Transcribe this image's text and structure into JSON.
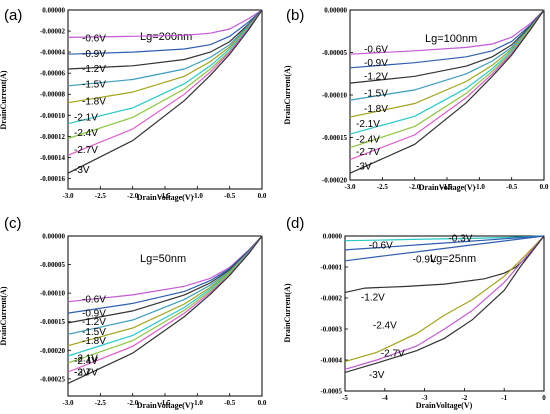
{
  "figure": {
    "panel_labels": [
      "(a)",
      "(b)",
      "(c)",
      "(d)"
    ]
  },
  "chart_data": [
    {
      "type": "line",
      "panel": "(a)",
      "annotation": "Lg=200nm",
      "xlabel": "DrainVoltage(V)",
      "ylabel": "DrainCurrent(A)",
      "xlim": [
        -3.0,
        0.0
      ],
      "ylim": [
        -0.00017,
        0.0
      ],
      "xticks": [
        -3.0,
        -2.5,
        -2.0,
        -1.5,
        -1.0,
        -0.5,
        0.0
      ],
      "xtick_labels": [
        "-3.0",
        "-2.5",
        "-2.0",
        "-1.5",
        "-1.0",
        "-0.5",
        "0.0"
      ],
      "yticks": [
        0,
        -2e-05,
        -4e-05,
        -6e-05,
        -8e-05,
        -0.0001,
        -0.00012,
        -0.00014,
        -0.00016
      ],
      "ytick_labels": [
        "0.00000",
        "-0.00002",
        "-0.00004",
        "-0.00006",
        "-0.00008",
        "-0.00010",
        "-0.00012",
        "-0.00014",
        "-0.00016"
      ],
      "series": [
        {
          "name": "-0.6V",
          "color": "#c45ad6",
          "x": [
            -3.0,
            -2.0,
            -1.2,
            -0.8,
            -0.5,
            -0.2,
            0.0
          ],
          "y": [
            -2.6e-05,
            -2.5e-05,
            -2.4e-05,
            -2.2e-05,
            -1.8e-05,
            -8e-06,
            0
          ]
        },
        {
          "name": "-0.9V",
          "color": "#2e5fb0",
          "x": [
            -3.0,
            -2.0,
            -1.2,
            -0.8,
            -0.5,
            -0.2,
            0.0
          ],
          "y": [
            -4.2e-05,
            -4e-05,
            -3.7e-05,
            -3.3e-05,
            -2.5e-05,
            -1.1e-05,
            0
          ]
        },
        {
          "name": "-1.2V",
          "color": "#333333",
          "x": [
            -3.0,
            -2.0,
            -1.2,
            -0.8,
            -0.5,
            -0.2,
            0.0
          ],
          "y": [
            -5.6e-05,
            -5.3e-05,
            -4.7e-05,
            -4e-05,
            -3e-05,
            -1.3e-05,
            0
          ]
        },
        {
          "name": "-1.5V",
          "color": "#3a9dc0",
          "x": [
            -3.0,
            -2.0,
            -1.2,
            -0.8,
            -0.5,
            -0.2,
            0.0
          ],
          "y": [
            -7.2e-05,
            -6.6e-05,
            -5.6e-05,
            -4.5e-05,
            -3.3e-05,
            -1.4e-05,
            0
          ]
        },
        {
          "name": "-1.8V",
          "color": "#a3a31a",
          "x": [
            -3.0,
            -2.0,
            -1.2,
            -0.8,
            -0.5,
            -0.2,
            0.0
          ],
          "y": [
            -8.8e-05,
            -7.8e-05,
            -6.3e-05,
            -4.9e-05,
            -3.5e-05,
            -1.5e-05,
            0
          ]
        },
        {
          "name": "-2.1V",
          "color": "#27c9c9",
          "x": [
            -3.0,
            -2.0,
            -1.2,
            -0.8,
            -0.5,
            -0.2,
            0.0
          ],
          "y": [
            -0.000108,
            -9.3e-05,
            -7e-05,
            -5.3e-05,
            -3.7e-05,
            -1.6e-05,
            0
          ]
        },
        {
          "name": "-2.4V",
          "color": "#8cc63f",
          "x": [
            -3.0,
            -2.0,
            -1.2,
            -0.8,
            -0.5,
            -0.2,
            0.0
          ],
          "y": [
            -0.000122,
            -0.000102,
            -7.5e-05,
            -5.6e-05,
            -3.9e-05,
            -1.7e-05,
            0
          ]
        },
        {
          "name": "-2.7V",
          "color": "#e05ad0",
          "x": [
            -3.0,
            -2.0,
            -1.2,
            -0.8,
            -0.5,
            -0.2,
            0.0
          ],
          "y": [
            -0.000138,
            -0.000113,
            -8e-05,
            -5.9e-05,
            -4e-05,
            -1.7e-05,
            0
          ]
        },
        {
          "name": "-3V",
          "color": "#333333",
          "x": [
            -3.0,
            -2.0,
            -1.2,
            -0.8,
            -0.5,
            -0.2,
            0.0
          ],
          "y": [
            -0.000155,
            -0.000124,
            -8.6e-05,
            -6.2e-05,
            -4.2e-05,
            -1.8e-05,
            0
          ]
        }
      ],
      "label_y": [
        -2.6e-05,
        -4.1e-05,
        -5.5e-05,
        -7e-05,
        -8.6e-05,
        -0.000101,
        -0.000116,
        -0.000132,
        -0.000151
      ]
    },
    {
      "type": "line",
      "panel": "(b)",
      "annotation": "Lg=100nm",
      "xlabel": "DrainVoltage(V)",
      "ylabel": "DrainCurrent(A)",
      "xlim": [
        -3.0,
        0.0
      ],
      "ylim": [
        -0.0002,
        0.0
      ],
      "xticks": [
        -3.0,
        -2.5,
        -2.0,
        -1.5,
        -1.0,
        -0.5,
        0.0
      ],
      "xtick_labels": [
        "-3.0",
        "-2.5",
        "-2.0",
        "-1.5",
        "-1.0",
        "-0.5",
        "0.0"
      ],
      "yticks": [
        0,
        -5e-05,
        -0.0001,
        -0.00015,
        -0.0002
      ],
      "ytick_labels": [
        "0.00000",
        "-0.00005",
        "-0.00010",
        "-0.00015",
        "-0.00020"
      ],
      "series": [
        {
          "name": "-0.6V",
          "color": "#c45ad6",
          "x": [
            -3.0,
            -2.0,
            -1.2,
            -0.8,
            -0.5,
            -0.2,
            0.0
          ],
          "y": [
            -5.2e-05,
            -4.8e-05,
            -4.4e-05,
            -4e-05,
            -3.2e-05,
            -1.5e-05,
            0
          ]
        },
        {
          "name": "-0.9V",
          "color": "#2e5fb0",
          "x": [
            -3.0,
            -2.0,
            -1.2,
            -0.8,
            -0.5,
            -0.2,
            0.0
          ],
          "y": [
            -6.8e-05,
            -6.2e-05,
            -5.5e-05,
            -4.8e-05,
            -3.7e-05,
            -1.7e-05,
            0
          ]
        },
        {
          "name": "-1.2V",
          "color": "#333333",
          "x": [
            -3.0,
            -2.0,
            -1.2,
            -0.8,
            -0.5,
            -0.2,
            0.0
          ],
          "y": [
            -8.6e-05,
            -7.8e-05,
            -6.6e-05,
            -5.5e-05,
            -4.1e-05,
            -1.8e-05,
            0
          ]
        },
        {
          "name": "-1.5V",
          "color": "#3a9dc0",
          "x": [
            -3.0,
            -2.0,
            -1.2,
            -0.8,
            -0.5,
            -0.2,
            0.0
          ],
          "y": [
            -0.000106,
            -9.4e-05,
            -7.5e-05,
            -6e-05,
            -4.4e-05,
            -1.9e-05,
            0
          ]
        },
        {
          "name": "-1.8V",
          "color": "#a3a31a",
          "x": [
            -3.0,
            -2.0,
            -1.2,
            -0.8,
            -0.5,
            -0.2,
            0.0
          ],
          "y": [
            -0.000126,
            -0.00011,
            -8.4e-05,
            -6.5e-05,
            -4.6e-05,
            -2e-05,
            0
          ]
        },
        {
          "name": "-2.1V",
          "color": "#27c9c9",
          "x": [
            -3.0,
            -2.0,
            -1.2,
            -0.8,
            -0.5,
            -0.2,
            0.0
          ],
          "y": [
            -0.000146,
            -0.000125,
            -9.2e-05,
            -6.9e-05,
            -4.8e-05,
            -2.1e-05,
            0
          ]
        },
        {
          "name": "-2.4V",
          "color": "#8cc63f",
          "x": [
            -3.0,
            -2.0,
            -1.2,
            -0.8,
            -0.5,
            -0.2,
            0.0
          ],
          "y": [
            -0.000162,
            -0.000137,
            -9.8e-05,
            -7.2e-05,
            -5e-05,
            -2.1e-05,
            0
          ]
        },
        {
          "name": "-2.7V",
          "color": "#e05ad0",
          "x": [
            -3.0,
            -2.0,
            -1.2,
            -0.8,
            -0.5,
            -0.2,
            0.0
          ],
          "y": [
            -0.000176,
            -0.000147,
            -0.000103,
            -7.5e-05,
            -5.1e-05,
            -2.2e-05,
            0
          ]
        },
        {
          "name": "-3V",
          "color": "#333333",
          "x": [
            -3.0,
            -2.0,
            -1.2,
            -0.8,
            -0.5,
            -0.2,
            0.0
          ],
          "y": [
            -0.000192,
            -0.000158,
            -0.000109,
            -7.8e-05,
            -5.3e-05,
            -2.2e-05,
            0
          ]
        }
      ],
      "label_y": [
        -4.5e-05,
        -6.1e-05,
        -7.7e-05,
        -9.7e-05,
        -0.000115,
        -0.000133,
        -0.000151,
        -0.000166,
        -0.000183
      ]
    },
    {
      "type": "line",
      "panel": "(c)",
      "annotation": "Lg=50nm",
      "xlabel": "DrainVoltage(V)",
      "ylabel": "DrainCurrent(A)",
      "xlim": [
        -3.0,
        0.0
      ],
      "ylim": [
        -0.00028,
        0.0
      ],
      "xticks": [
        -3.0,
        -2.5,
        -2.0,
        -1.5,
        -1.0,
        -0.5,
        0.0
      ],
      "xtick_labels": [
        "-3.0",
        "-2.5",
        "-2.0",
        "-1.5",
        "-1.0",
        "-0.5",
        "0.0"
      ],
      "yticks": [
        0,
        -5e-05,
        -0.0001,
        -0.00015,
        -0.0002,
        -0.00025
      ],
      "ytick_labels": [
        "0.00000",
        "-0.00005",
        "-0.00010",
        "-0.00015",
        "-0.00020",
        "-0.00025"
      ],
      "series": [
        {
          "name": "-0.6V",
          "color": "#c45ad6",
          "x": [
            -3.0,
            -2.0,
            -1.2,
            -0.8,
            -0.5,
            -0.2,
            0.0
          ],
          "y": [
            -0.000115,
            -0.000103,
            -8.8e-05,
            -7.4e-05,
            -5.5e-05,
            -2.4e-05,
            0
          ]
        },
        {
          "name": "-0.9V",
          "color": "#2e5fb0",
          "x": [
            -3.0,
            -2.0,
            -1.2,
            -0.8,
            -0.5,
            -0.2,
            0.0
          ],
          "y": [
            -0.000135,
            -0.000118,
            -9.7e-05,
            -7.8e-05,
            -5.7e-05,
            -2.5e-05,
            0
          ]
        },
        {
          "name": "-1.2V",
          "color": "#333333",
          "x": [
            -3.0,
            -2.0,
            -1.2,
            -0.8,
            -0.5,
            -0.2,
            0.0
          ],
          "y": [
            -0.000152,
            -0.000131,
            -0.000103,
            -8.2e-05,
            -5.9e-05,
            -2.6e-05,
            0
          ]
        },
        {
          "name": "-1.5V",
          "color": "#3a9dc0",
          "x": [
            -3.0,
            -2.0,
            -1.2,
            -0.8,
            -0.5,
            -0.2,
            0.0
          ],
          "y": [
            -0.000172,
            -0.000147,
            -0.000111,
            -8.6e-05,
            -6.1e-05,
            -2.7e-05,
            0
          ]
        },
        {
          "name": "-1.8V",
          "color": "#a3a31a",
          "x": [
            -3.0,
            -2.0,
            -1.2,
            -0.8,
            -0.5,
            -0.2,
            0.0
          ],
          "y": [
            -0.000192,
            -0.000161,
            -0.000119,
            -9e-05,
            -6.3e-05,
            -2.8e-05,
            0
          ]
        },
        {
          "name": "-2.1V",
          "color": "#27c9c9",
          "x": [
            -3.0,
            -2.0,
            -1.2,
            -0.8,
            -0.5,
            -0.2,
            0.0
          ],
          "y": [
            -0.00021,
            -0.000174,
            -0.000125,
            -9.3e-05,
            -6.5e-05,
            -2.8e-05,
            0
          ]
        },
        {
          "name": "-2.4V",
          "color": "#8cc63f",
          "x": [
            -3.0,
            -2.0,
            -1.2,
            -0.8,
            -0.5,
            -0.2,
            0.0
          ],
          "y": [
            -0.000222,
            -0.000183,
            -0.00013,
            -9.6e-05,
            -6.6e-05,
            -2.9e-05,
            0
          ]
        },
        {
          "name": "-2.7V",
          "color": "#e05ad0",
          "x": [
            -3.0,
            -2.0,
            -1.2,
            -0.8,
            -0.5,
            -0.2,
            0.0
          ],
          "y": [
            -0.000238,
            -0.000193,
            -0.000135,
            -9.9e-05,
            -6.8e-05,
            -2.9e-05,
            0
          ]
        },
        {
          "name": "-3V",
          "color": "#333333",
          "x": [
            -3.0,
            -2.0,
            -1.2,
            -0.8,
            -0.5,
            -0.2,
            0.0
          ],
          "y": [
            -0.000258,
            -0.000205,
            -0.000141,
            -0.000102,
            -6.9e-05,
            -3e-05,
            0
          ]
        }
      ],
      "label_y": [
        -0.000109,
        -0.000134,
        -0.000149,
        -0.000166,
        -0.000182,
        -0.000213,
        -0.000217,
        -0.000237,
        -0.000237
      ]
    },
    {
      "type": "line",
      "panel": "(d)",
      "annotation": "Lg=25nm",
      "xlabel": "DrainVoltage(V)",
      "ylabel": "DrainCurrent(A)",
      "xlim": [
        -5,
        0
      ],
      "ylim": [
        -0.0005,
        0.0
      ],
      "xticks": [
        -5,
        -4,
        -3,
        -2,
        -1,
        0
      ],
      "xtick_labels": [
        "-5",
        "-4",
        "-3",
        "-2",
        "-1",
        "0"
      ],
      "yticks": [
        0,
        -0.0001,
        -0.0002,
        -0.0003,
        -0.0004,
        -0.0005
      ],
      "ytick_labels": [
        "0.0000",
        "-0.0001",
        "-0.0002",
        "-0.0003",
        "-0.0004",
        "-0.0005"
      ],
      "series": [
        {
          "name": "-0.3V",
          "color": "#27c9c9",
          "x": [
            -5,
            -4,
            -3,
            -2,
            -1,
            0
          ],
          "y": [
            -1.5e-05,
            -1.3e-05,
            -1e-05,
            -8e-06,
            -5e-06,
            0
          ]
        },
        {
          "name": "-0.6V",
          "color": "#2e5fb0",
          "x": [
            -5,
            -4,
            -3,
            -2,
            -1,
            0
          ],
          "y": [
            -4.5e-05,
            -3.6e-05,
            -2.7e-05,
            -1.8e-05,
            -9e-06,
            0
          ]
        },
        {
          "name": "-0.9V",
          "color": "#2e5fb0",
          "x": [
            -5,
            -4,
            -3,
            -2,
            -1,
            0
          ],
          "y": [
            -8e-05,
            -6.4e-05,
            -4.8e-05,
            -3.2e-05,
            -1.6e-05,
            0
          ]
        },
        {
          "name": "-1.2V",
          "color": "#333333",
          "x": [
            -5,
            -4.5,
            -3.5,
            -2.5,
            -1.5,
            -1.0,
            -0.7,
            -0.4,
            0
          ],
          "y": [
            -0.000182,
            -0.000168,
            -0.000163,
            -0.000155,
            -0.000138,
            -0.00012,
            -0.0001,
            -6.5e-05,
            0
          ]
        },
        {
          "name": "-2.4V",
          "color": "#a3a31a",
          "x": [
            -5,
            -4.2,
            -3.2,
            -2.5,
            -1.8,
            -1.0,
            -0.6,
            0
          ],
          "y": [
            -0.000405,
            -0.000375,
            -0.000315,
            -0.000255,
            -0.000205,
            -0.00013,
            -8e-05,
            0
          ]
        },
        {
          "name": "-2.7V",
          "color": "#c45ad6",
          "x": [
            -5,
            -4.2,
            -3.2,
            -2.5,
            -1.8,
            -1.0,
            -0.6,
            0
          ],
          "y": [
            -0.00043,
            -0.0004,
            -0.000355,
            -0.0003,
            -0.00024,
            -0.00015,
            -9e-05,
            0
          ]
        },
        {
          "name": "-3V",
          "color": "#333333",
          "x": [
            -5,
            -4.2,
            -3.2,
            -2.5,
            -1.8,
            -1.0,
            -0.6,
            0
          ],
          "y": [
            -0.00044,
            -0.00041,
            -0.00037,
            -0.00033,
            -0.00027,
            -0.000175,
            -0.0001,
            0
          ]
        }
      ],
      "label_x": [
        -2.4,
        -4.4,
        -3.3,
        -4.6,
        -4.3,
        -4.1,
        -4.4
      ],
      "label_y": [
        -5e-06,
        -2.8e-05,
        -7.2e-05,
        -0.000195,
        -0.000285,
        -0.000375,
        -0.000445
      ]
    }
  ]
}
